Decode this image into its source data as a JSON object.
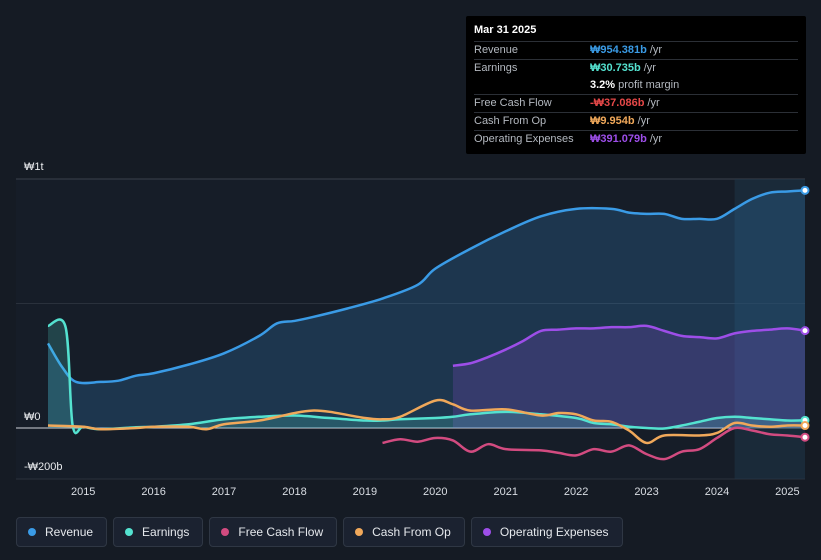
{
  "chart_data": {
    "type": "area",
    "currency_note": "KRW",
    "x_ticks": [
      "2015",
      "2016",
      "2017",
      "2018",
      "2019",
      "2020",
      "2021",
      "2022",
      "2023",
      "2024",
      "2025"
    ],
    "y_ticks": [
      {
        "value": 1000,
        "label": "₩1t"
      },
      {
        "value": 0,
        "label": "₩0"
      },
      {
        "value": -200,
        "label": "-₩200b"
      }
    ],
    "ylim": [
      -200,
      1000
    ],
    "xlim": [
      2014.5,
      2025.25
    ],
    "forecast_start": 2024.25,
    "series": [
      {
        "name": "Revenue",
        "color": "#3a9be6",
        "fill": true,
        "points": [
          [
            2014.5,
            340
          ],
          [
            2014.7,
            245
          ],
          [
            2014.9,
            185
          ],
          [
            2015.25,
            185
          ],
          [
            2015.5,
            190
          ],
          [
            2015.75,
            210
          ],
          [
            2016,
            220
          ],
          [
            2016.5,
            255
          ],
          [
            2017,
            300
          ],
          [
            2017.5,
            370
          ],
          [
            2017.75,
            420
          ],
          [
            2018,
            430
          ],
          [
            2018.25,
            445
          ],
          [
            2018.75,
            480
          ],
          [
            2019.25,
            520
          ],
          [
            2019.75,
            575
          ],
          [
            2020,
            640
          ],
          [
            2020.5,
            720
          ],
          [
            2021,
            790
          ],
          [
            2021.5,
            850
          ],
          [
            2022,
            880
          ],
          [
            2022.5,
            880
          ],
          [
            2022.75,
            865
          ],
          [
            2023,
            860
          ],
          [
            2023.25,
            860
          ],
          [
            2023.5,
            840
          ],
          [
            2023.75,
            840
          ],
          [
            2024,
            840
          ],
          [
            2024.25,
            880
          ],
          [
            2024.5,
            920
          ],
          [
            2024.75,
            945
          ],
          [
            2025,
            950
          ],
          [
            2025.25,
            954.381
          ]
        ]
      },
      {
        "name": "Operating Expenses",
        "color": "#9d4ee8",
        "fill": true,
        "points": [
          [
            2020.25,
            250
          ],
          [
            2020.5,
            260
          ],
          [
            2020.75,
            285
          ],
          [
            2021,
            315
          ],
          [
            2021.25,
            350
          ],
          [
            2021.5,
            390
          ],
          [
            2021.75,
            395
          ],
          [
            2022,
            400
          ],
          [
            2022.25,
            400
          ],
          [
            2022.5,
            405
          ],
          [
            2022.75,
            405
          ],
          [
            2023,
            410
          ],
          [
            2023.25,
            390
          ],
          [
            2023.5,
            370
          ],
          [
            2023.75,
            365
          ],
          [
            2024,
            360
          ],
          [
            2024.25,
            380
          ],
          [
            2024.5,
            390
          ],
          [
            2024.75,
            395
          ],
          [
            2025,
            400
          ],
          [
            2025.25,
            391.079
          ]
        ]
      },
      {
        "name": "Earnings",
        "color": "#54e2d0",
        "fill": true,
        "points": [
          [
            2014.5,
            410
          ],
          [
            2014.75,
            405
          ],
          [
            2014.85,
            10
          ],
          [
            2015,
            5
          ],
          [
            2015.25,
            -5
          ],
          [
            2015.75,
            3
          ],
          [
            2016,
            5
          ],
          [
            2016.5,
            15
          ],
          [
            2017,
            35
          ],
          [
            2017.5,
            45
          ],
          [
            2018,
            50
          ],
          [
            2018.5,
            40
          ],
          [
            2019,
            30
          ],
          [
            2019.25,
            30
          ],
          [
            2019.5,
            35
          ],
          [
            2020,
            40
          ],
          [
            2020.25,
            45
          ],
          [
            2020.5,
            55
          ],
          [
            2021,
            65
          ],
          [
            2021.5,
            55
          ],
          [
            2022,
            40
          ],
          [
            2022.25,
            20
          ],
          [
            2022.5,
            15
          ],
          [
            2022.75,
            5
          ],
          [
            2023,
            0
          ],
          [
            2023.25,
            -2
          ],
          [
            2023.5,
            10
          ],
          [
            2023.75,
            25
          ],
          [
            2024,
            40
          ],
          [
            2024.25,
            45
          ],
          [
            2024.5,
            40
          ],
          [
            2024.75,
            35
          ],
          [
            2025,
            30
          ],
          [
            2025.25,
            30.735
          ]
        ]
      },
      {
        "name": "Cash From Op",
        "color": "#f0a85a",
        "fill": false,
        "points": [
          [
            2014.5,
            10
          ],
          [
            2015,
            5
          ],
          [
            2015.25,
            -5
          ],
          [
            2015.75,
            0
          ],
          [
            2016,
            5
          ],
          [
            2016.5,
            5
          ],
          [
            2016.75,
            -5
          ],
          [
            2017,
            15
          ],
          [
            2017.5,
            30
          ],
          [
            2018,
            60
          ],
          [
            2018.25,
            70
          ],
          [
            2018.5,
            65
          ],
          [
            2019,
            40
          ],
          [
            2019.25,
            35
          ],
          [
            2019.5,
            45
          ],
          [
            2020,
            110
          ],
          [
            2020.25,
            95
          ],
          [
            2020.5,
            70
          ],
          [
            2021,
            75
          ],
          [
            2021.5,
            50
          ],
          [
            2021.75,
            60
          ],
          [
            2022,
            55
          ],
          [
            2022.25,
            30
          ],
          [
            2022.5,
            25
          ],
          [
            2022.75,
            -10
          ],
          [
            2023,
            -60
          ],
          [
            2023.25,
            -30
          ],
          [
            2023.75,
            -30
          ],
          [
            2024,
            -20
          ],
          [
            2024.25,
            20
          ],
          [
            2024.5,
            10
          ],
          [
            2024.75,
            5
          ],
          [
            2025,
            10
          ],
          [
            2025.25,
            9.954
          ]
        ]
      },
      {
        "name": "Free Cash Flow",
        "color": "#d24b80",
        "fill": false,
        "points": [
          [
            2019.25,
            -60
          ],
          [
            2019.5,
            -45
          ],
          [
            2019.75,
            -55
          ],
          [
            2020,
            -40
          ],
          [
            2020.25,
            -50
          ],
          [
            2020.5,
            -95
          ],
          [
            2020.75,
            -65
          ],
          [
            2021,
            -85
          ],
          [
            2021.5,
            -90
          ],
          [
            2021.75,
            -100
          ],
          [
            2022,
            -110
          ],
          [
            2022.25,
            -85
          ],
          [
            2022.5,
            -95
          ],
          [
            2022.75,
            -70
          ],
          [
            2023,
            -105
          ],
          [
            2023.25,
            -125
          ],
          [
            2023.5,
            -95
          ],
          [
            2023.75,
            -85
          ],
          [
            2024,
            -40
          ],
          [
            2024.25,
            0
          ],
          [
            2024.5,
            -10
          ],
          [
            2024.75,
            -25
          ],
          [
            2025,
            -30
          ],
          [
            2025.25,
            -37.086
          ]
        ]
      }
    ]
  },
  "tooltip": {
    "date": "Mar 31 2025",
    "rows": [
      {
        "label": "Revenue",
        "value": "₩954.381b",
        "unit": "/yr",
        "color": "#3a9be6"
      },
      {
        "label": "Earnings",
        "value": "₩30.735b",
        "unit": "/yr",
        "color": "#54e2d0"
      },
      {
        "label": "",
        "value": "3.2%",
        "unit": "profit margin",
        "color": "#ffffff"
      },
      {
        "label": "Free Cash Flow",
        "value": "-₩37.086b",
        "unit": "/yr",
        "color": "#e64848"
      },
      {
        "label": "Cash From Op",
        "value": "₩9.954b",
        "unit": "/yr",
        "color": "#f0a85a"
      },
      {
        "label": "Operating Expenses",
        "value": "₩391.079b",
        "unit": "/yr",
        "color": "#9d4ee8"
      }
    ]
  },
  "legend": [
    {
      "label": "Revenue",
      "color": "#3a9be6"
    },
    {
      "label": "Earnings",
      "color": "#54e2d0"
    },
    {
      "label": "Free Cash Flow",
      "color": "#d24b80"
    },
    {
      "label": "Cash From Op",
      "color": "#f0a85a"
    },
    {
      "label": "Operating Expenses",
      "color": "#9d4ee8"
    }
  ]
}
